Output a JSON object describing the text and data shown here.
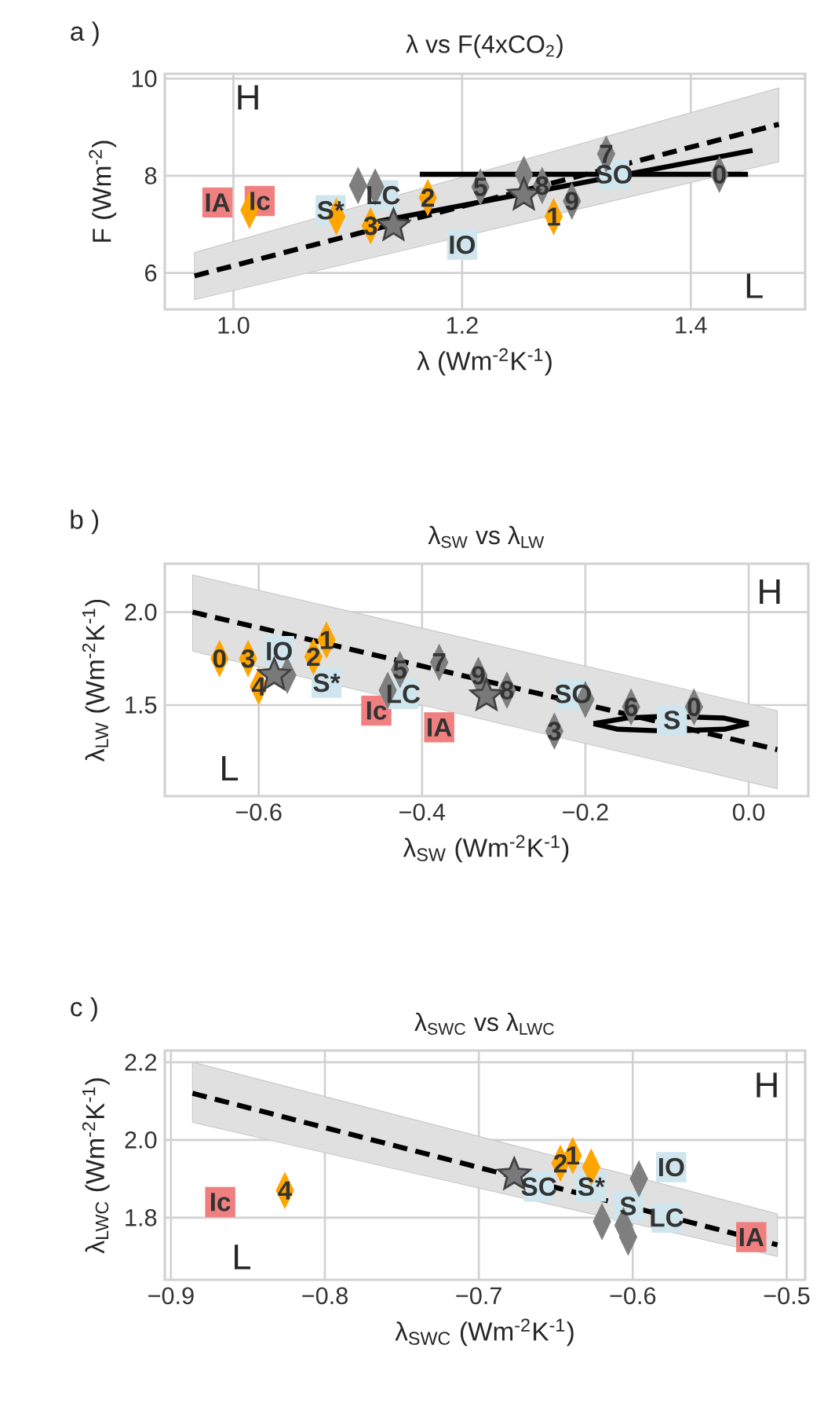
{
  "chart_data": [
    {
      "type": "scatter",
      "title": "λ vs F(4xCO$_{2}$)",
      "xlabel": "λ (Wm$^{-2}$K$^{-1}$)",
      "ylabel": "F (Wm$^{-2}$)",
      "xlim": [
        0.94,
        1.5
      ],
      "ylim": [
        5.25,
        10.1
      ],
      "xticks": [
        {
          "value": 1.0,
          "label": "1.0"
        },
        {
          "value": 1.2,
          "label": "1.2"
        },
        {
          "value": 1.4,
          "label": "1.4"
        }
      ],
      "yticks": [
        6,
        8,
        10
      ],
      "grid": true,
      "annotations": [
        "a )",
        "H",
        "L",
        {
          "text": "3",
          "x": 1.12,
          "y": 6.97
        },
        {
          "text": "2",
          "x": 1.17,
          "y": 7.55
        },
        {
          "text": "1",
          "x": 1.28,
          "y": 7.16
        },
        {
          "text": "5",
          "x": 1.216,
          "y": 7.77
        },
        {
          "text": "8",
          "x": 1.27,
          "y": 7.8
        },
        {
          "text": "9",
          "x": 1.296,
          "y": 7.48
        },
        {
          "text": "7",
          "x": 1.326,
          "y": 8.45
        },
        {
          "text": "0",
          "x": 1.425,
          "y": 8.03
        },
        {
          "text": "IA",
          "x": 0.986,
          "y": 7.45
        },
        {
          "text": "Ic",
          "x": 1.023,
          "y": 7.48
        },
        {
          "text": "S*",
          "x": 1.085,
          "y": 7.29
        },
        {
          "text": "LC",
          "x": 1.131,
          "y": 7.6
        },
        {
          "text": "IO",
          "x": 1.2,
          "y": 6.58
        },
        {
          "text": "SO",
          "x": 1.333,
          "y": 8.03
        }
      ],
      "series": [
        {
          "type": "line",
          "line_style": "dashed",
          "color": "#000000",
          "x": [
            0.966,
            1.477
          ],
          "values": [
            5.94,
            9.06
          ],
          "lower": [
            5.45,
            8.29
          ],
          "upper": [
            6.42,
            9.81
          ]
        },
        {
          "type": "line",
          "line_style": "solid",
          "color": "#000000",
          "x": [
            1.163,
            1.45
          ],
          "values": [
            8.03,
            8.03
          ]
        },
        {
          "type": "line",
          "line_style": "solid",
          "color": "#000000",
          "x": [
            1.126,
            1.454
          ],
          "values": [
            7.06,
            8.52
          ]
        },
        {
          "marker": "diamond",
          "color": "#ffa500",
          "x": [
            1.014,
            1.09,
            1.12,
            1.17,
            1.28
          ],
          "values": [
            7.29,
            7.16,
            6.97,
            7.55,
            7.16
          ]
        },
        {
          "marker": "diamond",
          "color": "#7f7f7f",
          "x": [
            1.109,
            1.124,
            1.216,
            1.254,
            1.27,
            1.296,
            1.326,
            1.425
          ],
          "values": [
            7.8,
            7.77,
            7.77,
            8.03,
            7.8,
            7.48,
            8.45,
            8.03
          ]
        },
        {
          "marker": "star",
          "color": "#404040",
          "x": [
            1.254,
            1.14
          ],
          "values": [
            7.6,
            6.97
          ]
        },
        {
          "marker": "square",
          "color": "#f08080",
          "x": [
            0.986,
            1.023
          ],
          "values": [
            7.45,
            7.48
          ]
        },
        {
          "marker": "square",
          "color": "#cfe6ee",
          "x": [
            1.085,
            1.131,
            1.2,
            1.333
          ],
          "values": [
            7.29,
            7.6,
            6.58,
            8.03
          ]
        }
      ]
    },
    {
      "type": "scatter",
      "title": "λ$_{SW}$ vs  λ$_{LW}$",
      "xlabel": "λ$_{SW}$ (Wm$^{-2}$K$^{-1}$)",
      "ylabel": "λ$_{LW}$ (Wm$^{-2}$K$^{-1}$)",
      "xlim": [
        -0.715,
        0.073
      ],
      "ylim": [
        1.01,
        2.26
      ],
      "xticks": [
        {
          "value": -0.6,
          "label": "−0.6"
        },
        {
          "value": -0.4,
          "label": "−0.4"
        },
        {
          "value": -0.2,
          "label": "−0.2"
        },
        {
          "value": 0.0,
          "label": "0.0"
        }
      ],
      "yticks": [
        {
          "value": 1.5,
          "label": "1.5"
        },
        {
          "value": 2.0,
          "label": "2.0"
        }
      ],
      "grid": true,
      "annotations": [
        "b )",
        "H",
        "L",
        {
          "text": "0",
          "x": -0.648,
          "y": 1.75
        },
        {
          "text": "3",
          "x": -0.613,
          "y": 1.75
        },
        {
          "text": "4",
          "x": -0.6,
          "y": 1.6
        },
        {
          "text": "2",
          "x": -0.533,
          "y": 1.76
        },
        {
          "text": "1",
          "x": -0.517,
          "y": 1.85
        },
        {
          "text": "5",
          "x": -0.427,
          "y": 1.69
        },
        {
          "text": "7",
          "x": -0.379,
          "y": 1.73
        },
        {
          "text": "9",
          "x": -0.331,
          "y": 1.66
        },
        {
          "text": "8",
          "x": -0.296,
          "y": 1.58
        },
        {
          "text": "3",
          "x": -0.238,
          "y": 1.36
        },
        {
          "text": "6",
          "x": -0.144,
          "y": 1.49
        },
        {
          "text": "0",
          "x": -0.067,
          "y": 1.49
        },
        {
          "text": "Ic",
          "x": -0.456,
          "y": 1.47
        },
        {
          "text": "IA",
          "x": -0.379,
          "y": 1.38
        },
        {
          "text": "IO",
          "x": -0.575,
          "y": 1.79
        },
        {
          "text": "S*",
          "x": -0.517,
          "y": 1.62
        },
        {
          "text": "LC",
          "x": -0.423,
          "y": 1.56
        },
        {
          "text": "SO",
          "x": -0.215,
          "y": 1.56
        },
        {
          "text": "S",
          "x": -0.094,
          "y": 1.42
        }
      ],
      "series": [
        {
          "type": "line",
          "line_style": "dashed",
          "color": "#000000",
          "x": [
            -0.681,
            0.035
          ],
          "values": [
            2.0,
            1.26
          ],
          "lower": [
            1.79,
            1.05
          ],
          "upper": [
            2.2,
            1.47
          ]
        },
        {
          "type": "line",
          "line_style": "solid",
          "color": "#000000",
          "x": [
            -0.19,
            -0.15,
            -0.1,
            -0.03,
            0.0
          ],
          "values": [
            1.4,
            1.43,
            1.44,
            1.43,
            1.4
          ]
        },
        {
          "type": "line",
          "line_style": "solid",
          "color": "#000000",
          "x": [
            -0.19,
            -0.16,
            -0.1,
            -0.03,
            0.0
          ],
          "values": [
            1.4,
            1.37,
            1.36,
            1.37,
            1.4
          ]
        },
        {
          "marker": "diamond",
          "color": "#ffa500",
          "x": [
            -0.648,
            -0.613,
            -0.6,
            -0.533,
            -0.517
          ],
          "values": [
            1.75,
            1.75,
            1.6,
            1.76,
            1.85
          ]
        },
        {
          "marker": "diamond",
          "color": "#7f7f7f",
          "x": [
            -0.565,
            -0.442,
            -0.427,
            -0.379,
            -0.331,
            -0.296,
            -0.238,
            -0.2,
            -0.144,
            -0.067
          ],
          "values": [
            1.66,
            1.58,
            1.69,
            1.73,
            1.66,
            1.58,
            1.36,
            1.53,
            1.49,
            1.49
          ]
        },
        {
          "marker": "star",
          "color": "#404040",
          "x": [
            -0.581,
            -0.321
          ],
          "values": [
            1.66,
            1.55
          ]
        },
        {
          "marker": "square",
          "color": "#f08080",
          "x": [
            -0.456,
            -0.379
          ],
          "values": [
            1.47,
            1.38
          ]
        },
        {
          "marker": "square",
          "color": "#cfe6ee",
          "x": [
            -0.575,
            -0.517,
            -0.423,
            -0.215,
            -0.094
          ],
          "values": [
            1.79,
            1.62,
            1.56,
            1.56,
            1.42
          ]
        }
      ]
    },
    {
      "type": "scatter",
      "title": "λ$_{SWC}$ vs  λ$_{LWC}$",
      "xlabel": "λ$_{SWC}$ (Wm$^{-2}$K$^{-1}$)",
      "ylabel": "λ$_{LWC}$ (Wm$^{-2}$K$^{-1}$)",
      "xlim": [
        -0.904,
        -0.488
      ],
      "ylim": [
        1.64,
        2.23
      ],
      "xticks": [
        {
          "value": -0.9,
          "label": "−0.9"
        },
        {
          "value": -0.8,
          "label": "−0.8"
        },
        {
          "value": -0.7,
          "label": "−0.7"
        },
        {
          "value": -0.6,
          "label": "−0.6"
        },
        {
          "value": -0.5,
          "label": "−0.5"
        }
      ],
      "yticks": [
        {
          "value": 1.8,
          "label": "1.8"
        },
        {
          "value": 2.0,
          "label": "2.0"
        },
        {
          "value": 2.2,
          "label": "2.2"
        }
      ],
      "grid": true,
      "annotations": [
        "c )",
        "H",
        "L",
        {
          "text": "4",
          "x": -0.826,
          "y": 1.87
        },
        {
          "text": "2",
          "x": -0.647,
          "y": 1.94
        },
        {
          "text": "1",
          "x": -0.639,
          "y": 1.96
        },
        {
          "text": "Ic",
          "x": -0.868,
          "y": 1.84
        },
        {
          "text": "IA",
          "x": -0.523,
          "y": 1.75
        },
        {
          "text": "SC",
          "x": -0.661,
          "y": 1.88
        },
        {
          "text": "S*",
          "x": -0.627,
          "y": 1.88
        },
        {
          "text": "IO",
          "x": -0.575,
          "y": 1.93
        },
        {
          "text": "S",
          "x": -0.603,
          "y": 1.83
        },
        {
          "text": "LC",
          "x": -0.578,
          "y": 1.8
        }
      ],
      "series": [
        {
          "type": "line",
          "line_style": "dashed",
          "color": "#000000",
          "x": [
            -0.886,
            -0.506
          ],
          "values": [
            2.12,
            1.73
          ],
          "lower": [
            2.045,
            1.7
          ],
          "upper": [
            2.2,
            1.81
          ]
        },
        {
          "marker": "diamond",
          "color": "#ffa500",
          "x": [
            -0.826,
            -0.647,
            -0.639,
            -0.627
          ],
          "values": [
            1.87,
            1.94,
            1.96,
            1.93
          ]
        },
        {
          "marker": "diamond",
          "color": "#7f7f7f",
          "x": [
            -0.62,
            -0.606,
            -0.596,
            -0.603
          ],
          "values": [
            1.79,
            1.78,
            1.9,
            1.75
          ]
        },
        {
          "marker": "star",
          "color": "#404040",
          "x": [
            -0.677
          ],
          "values": [
            1.91
          ]
        },
        {
          "marker": "square",
          "color": "#f08080",
          "x": [
            -0.868,
            -0.523
          ],
          "values": [
            1.84,
            1.75
          ]
        },
        {
          "marker": "square",
          "color": "#cfe6ee",
          "x": [
            -0.661,
            -0.627,
            -0.575,
            -0.603,
            -0.578
          ],
          "values": [
            1.88,
            1.88,
            1.93,
            1.83,
            1.8
          ]
        }
      ]
    }
  ]
}
